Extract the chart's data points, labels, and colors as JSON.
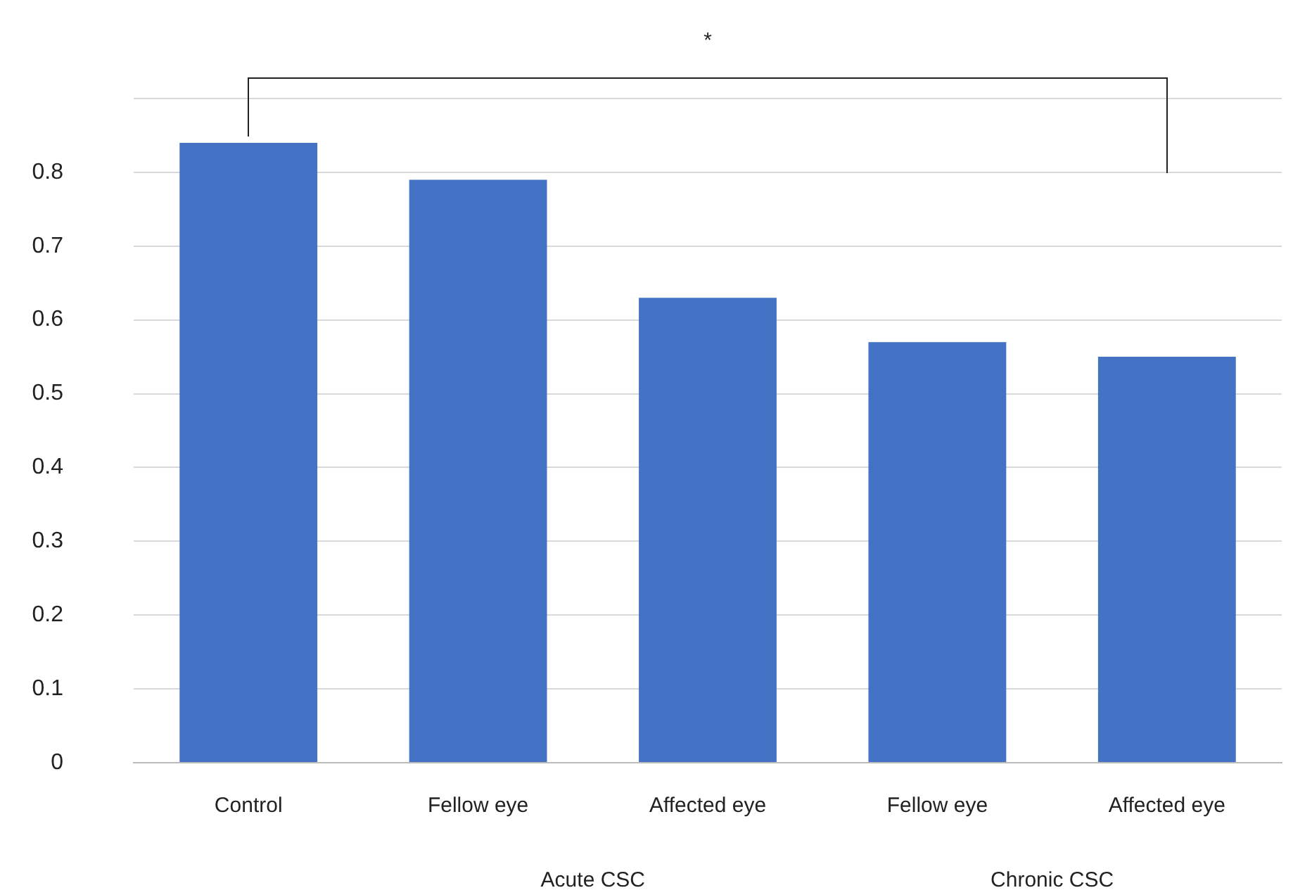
{
  "chart_data": {
    "type": "bar",
    "categories": [
      "Control",
      "Fellow eye",
      "Affected eye",
      "Fellow eye",
      "Affected eye"
    ],
    "values": [
      0.84,
      0.79,
      0.63,
      0.57,
      0.55
    ],
    "color": "#4472c4",
    "ylim": [
      0,
      0.9
    ],
    "yticks": [
      0,
      0.1,
      0.2,
      0.3,
      0.4,
      0.5,
      0.6,
      0.7,
      0.8,
      {
        "value": 0.9,
        "label": null
      }
    ],
    "grid": "y",
    "legend": false,
    "annotations": [
      "*",
      "Acute CSC",
      "Chronic CSC"
    ]
  }
}
